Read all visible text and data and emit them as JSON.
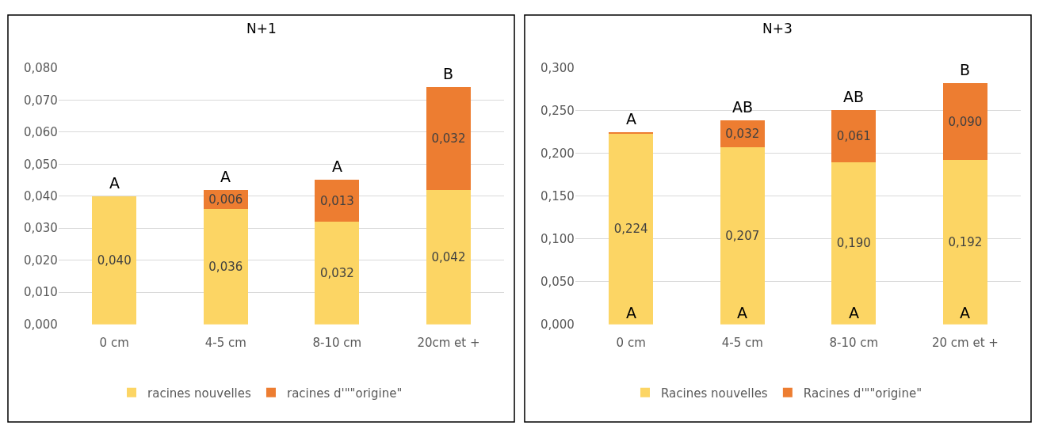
{
  "chart_data": [
    {
      "type": "bar",
      "title": "N+1",
      "stacked": true,
      "categories": [
        "0 cm",
        "4-5 cm",
        "8-10 cm",
        "20cm et +"
      ],
      "series": [
        {
          "name": "racines nouvelles",
          "color": "#fcd564",
          "values": [
            0.04,
            0.036,
            0.032,
            0.042
          ],
          "value_labels": [
            "0,040",
            "0,036",
            "0,032",
            "0,042"
          ]
        },
        {
          "name": "racines d'\"\"origine\"",
          "color": "#ed7d31",
          "values": [
            null,
            0.006,
            0.013,
            0.032
          ],
          "value_labels": [
            null,
            "0,006",
            "0,013",
            "0,032"
          ]
        }
      ],
      "ylim": [
        0,
        0.08
      ],
      "yticks": [
        {
          "value": 0,
          "label": "0,000"
        },
        {
          "value": 0.01,
          "label": "0,010"
        },
        {
          "value": 0.02,
          "label": "0,020"
        },
        {
          "value": 0.03,
          "label": "0,030"
        },
        {
          "value": 0.04,
          "label": "0,040"
        },
        {
          "value": 0.05,
          "label": "0,050"
        },
        {
          "value": 0.06,
          "label": "0,060"
        },
        {
          "value": 0.07,
          "label": "0,070"
        },
        {
          "value": 0.08,
          "label": "0,080"
        }
      ],
      "grid": "y",
      "legend": "bottom",
      "annotations": [
        {
          "text": "A",
          "y": 0.04
        },
        {
          "text": "A",
          "y": 0.042
        },
        {
          "text": "A",
          "y": 0.045
        },
        {
          "text": "B",
          "y": 0.074
        }
      ]
    },
    {
      "type": "bar",
      "title": "N+3",
      "stacked": true,
      "categories": [
        "0 cm",
        "4-5 cm",
        "8-10 cm",
        "20 cm et +"
      ],
      "series": [
        {
          "name": "Racines nouvelles",
          "color": "#fcd564",
          "values": [
            0.224,
            0.207,
            0.19,
            0.192
          ],
          "value_labels": [
            "0,224",
            "0,207",
            "0,190",
            "0,192"
          ]
        },
        {
          "name": "Racines d'\"\"origine\"",
          "color": "#ed7d31",
          "values": [
            0.001,
            0.032,
            0.061,
            0.09
          ],
          "value_labels": [
            null,
            "0,032",
            "0,061",
            "0,090"
          ]
        }
      ],
      "ylim": [
        0,
        0.3
      ],
      "yticks": [
        {
          "value": 0,
          "label": "0,000"
        },
        {
          "value": 0.05,
          "label": "0,050"
        },
        {
          "value": 0.1,
          "label": "0,100"
        },
        {
          "value": 0.15,
          "label": "0,150"
        },
        {
          "value": 0.2,
          "label": "0,200"
        },
        {
          "value": 0.25,
          "label": "0,250"
        },
        {
          "value": 0.3,
          "label": "0,300"
        }
      ],
      "grid": "y",
      "legend": "bottom",
      "annotations": [
        {
          "text": "A",
          "y": 0.225
        },
        {
          "text": "AB",
          "y": 0.239
        },
        {
          "text": "AB",
          "y": 0.251
        },
        {
          "text": "B",
          "y": 0.282
        },
        {
          "text": "A",
          "y": 0
        },
        {
          "text": "A",
          "y": 0
        },
        {
          "text": "A",
          "y": 0
        },
        {
          "text": "A",
          "y": 0
        }
      ]
    }
  ]
}
